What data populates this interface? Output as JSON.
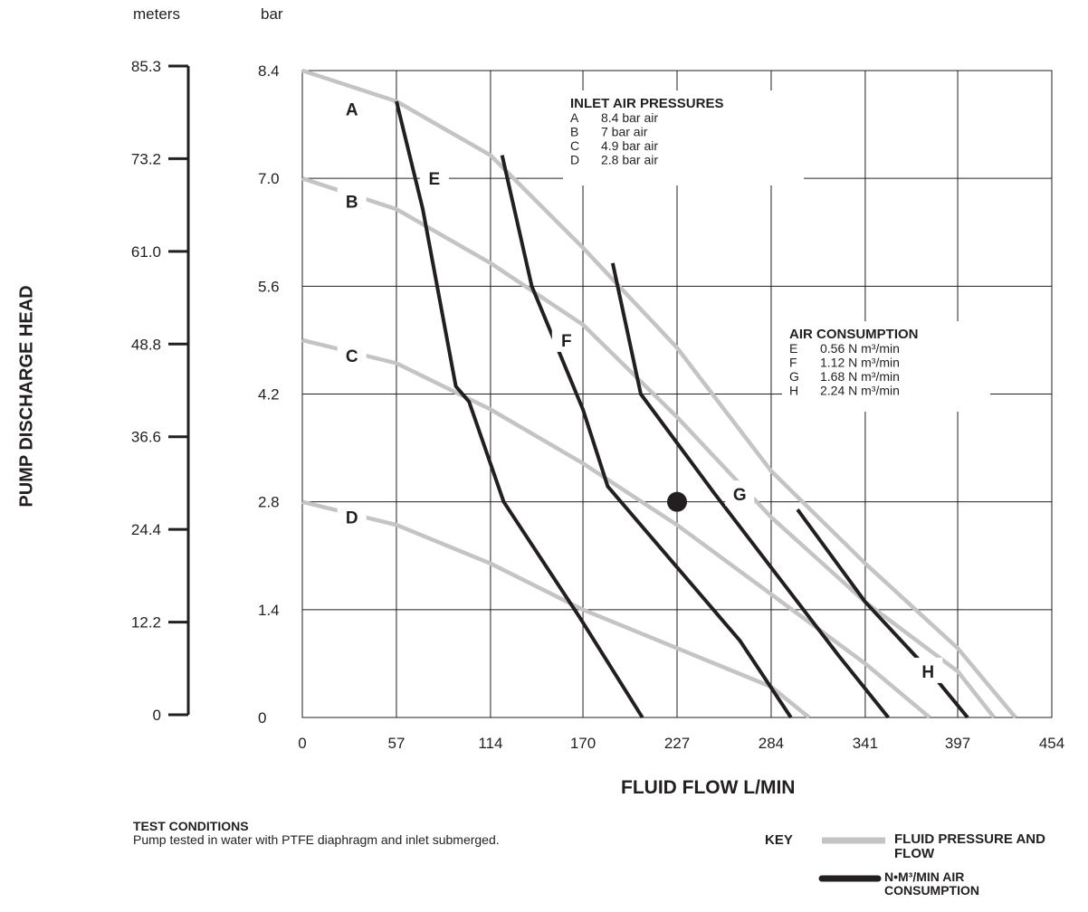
{
  "left_axis": {
    "unit": "meters",
    "ticks": [
      "85.3",
      "73.2",
      "61.0",
      "48.8",
      "36.6",
      "24.4",
      "12.2",
      "0"
    ]
  },
  "y_unit": "bar",
  "y_title": "PUMP DISCHARGE HEAD",
  "x_title": "FLUID FLOW L/MIN",
  "inlet_box": {
    "title": "INLET AIR PRESSURES",
    "rows": [
      {
        "code": "A",
        "text": "8.4 bar air"
      },
      {
        "code": "B",
        "text": "7 bar air"
      },
      {
        "code": "C",
        "text": "4.9 bar air"
      },
      {
        "code": "D",
        "text": "2.8 bar air"
      }
    ]
  },
  "air_box": {
    "title": "AIR CONSUMPTION",
    "rows": [
      {
        "code": "E",
        "text": "0.56 N m³/min"
      },
      {
        "code": "F",
        "text": "1.12 N m³/min"
      },
      {
        "code": "G",
        "text": "1.68 N m³/min"
      },
      {
        "code": "H",
        "text": "2.24 N m³/min"
      }
    ]
  },
  "test_conditions": {
    "title": "TEST CONDITIONS",
    "text": "Pump tested in water with PTFE diaphragm and inlet submerged."
  },
  "key": {
    "label": "KEY",
    "fluid": "FLUID PRESSURE AND FLOW",
    "air": "N•M³/MIN AIR CONSUMPTION"
  },
  "colors": {
    "fluid_curve": "#c4c4c4",
    "air_curve": "#231f20",
    "grid": "#231f20"
  },
  "chart_data": {
    "type": "line",
    "xlabel": "FLUID FLOW L/MIN",
    "ylabel": "PUMP DISCHARGE HEAD",
    "x_ticks": [
      "0",
      "57",
      "114",
      "170",
      "227",
      "284",
      "341",
      "397",
      "454"
    ],
    "y_ticks": [
      "8.4",
      "7.0",
      "5.6",
      "4.2",
      "2.8",
      "1.4",
      "0"
    ],
    "xlim": [
      0,
      454
    ],
    "ylim": [
      0,
      8.4
    ],
    "grid": true,
    "marker_point": {
      "x": 227,
      "y": 2.8
    },
    "fluid_series": [
      {
        "name": "A",
        "points": [
          [
            0,
            8.4
          ],
          [
            57,
            8.0
          ],
          [
            114,
            7.3
          ],
          [
            170,
            6.1
          ],
          [
            227,
            4.8
          ],
          [
            284,
            3.2
          ],
          [
            341,
            2.0
          ],
          [
            397,
            0.9
          ],
          [
            432,
            0
          ]
        ]
      },
      {
        "name": "B",
        "points": [
          [
            0,
            7.0
          ],
          [
            57,
            6.6
          ],
          [
            114,
            5.9
          ],
          [
            170,
            5.1
          ],
          [
            227,
            3.9
          ],
          [
            284,
            2.6
          ],
          [
            341,
            1.5
          ],
          [
            397,
            0.6
          ],
          [
            419,
            0
          ]
        ]
      },
      {
        "name": "C",
        "points": [
          [
            0,
            4.9
          ],
          [
            57,
            4.6
          ],
          [
            114,
            4.0
          ],
          [
            170,
            3.3
          ],
          [
            227,
            2.5
          ],
          [
            284,
            1.6
          ],
          [
            341,
            0.7
          ],
          [
            380,
            0
          ]
        ]
      },
      {
        "name": "D",
        "points": [
          [
            0,
            2.8
          ],
          [
            57,
            2.5
          ],
          [
            114,
            2.0
          ],
          [
            170,
            1.4
          ],
          [
            227,
            0.9
          ],
          [
            284,
            0.4
          ],
          [
            307,
            0
          ]
        ]
      }
    ],
    "air_series": [
      {
        "name": "E",
        "points": [
          [
            57,
            8.0
          ],
          [
            73,
            6.6
          ],
          [
            93,
            4.3
          ],
          [
            101,
            4.1
          ],
          [
            122,
            2.8
          ],
          [
            168,
            1.3
          ],
          [
            206,
            0
          ]
        ]
      },
      {
        "name": "F",
        "points": [
          [
            121,
            7.3
          ],
          [
            139,
            5.6
          ],
          [
            170,
            4.0
          ],
          [
            185,
            3.0
          ],
          [
            225,
            2.0
          ],
          [
            265,
            1.0
          ],
          [
            296,
            0
          ]
        ]
      },
      {
        "name": "G",
        "points": [
          [
            188,
            5.9
          ],
          [
            205,
            4.2
          ],
          [
            250,
            2.9
          ],
          [
            300,
            1.5
          ],
          [
            325,
            0.8
          ],
          [
            355,
            0
          ]
        ]
      },
      {
        "name": "H",
        "points": [
          [
            300,
            2.7
          ],
          [
            341,
            1.5
          ],
          [
            380,
            0.6
          ],
          [
            403,
            0
          ]
        ]
      }
    ]
  }
}
